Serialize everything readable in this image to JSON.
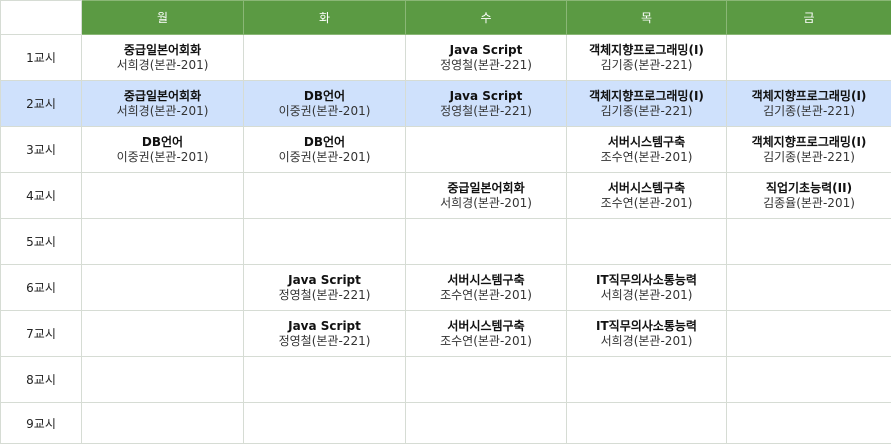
{
  "header": {
    "corner": "",
    "days": [
      "월",
      "화",
      "수",
      "목",
      "금"
    ]
  },
  "rows": [
    {
      "period": "1교시",
      "cells": [
        {
          "title": "중급일본어회화",
          "room": "서희경(본관-201)"
        },
        null,
        {
          "title": "Java Script",
          "room": "정영철(본관-221)"
        },
        {
          "title": "객체지향프로그래밍(I)",
          "room": "김기종(본관-221)"
        },
        null
      ]
    },
    {
      "period": "2교시",
      "highlight": true,
      "cells": [
        {
          "title": "중급일본어회화",
          "room": "서희경(본관-201)"
        },
        {
          "title": "DB언어",
          "room": "이중권(본관-201)"
        },
        {
          "title": "Java Script",
          "room": "정영철(본관-221)"
        },
        {
          "title": "객체지향프로그래밍(I)",
          "room": "김기종(본관-221)"
        },
        {
          "title": "객체지향프로그래밍(I)",
          "room": "김기종(본관-221)"
        }
      ]
    },
    {
      "period": "3교시",
      "cells": [
        {
          "title": "DB언어",
          "room": "이중권(본관-201)"
        },
        {
          "title": "DB언어",
          "room": "이중권(본관-201)"
        },
        null,
        {
          "title": "서버시스템구축",
          "room": "조수연(본관-201)"
        },
        {
          "title": "객체지향프로그래밍(I)",
          "room": "김기종(본관-221)"
        }
      ]
    },
    {
      "period": "4교시",
      "cells": [
        null,
        null,
        {
          "title": "중급일본어회화",
          "room": "서희경(본관-201)"
        },
        {
          "title": "서버시스템구축",
          "room": "조수연(본관-201)"
        },
        {
          "title": "직업기초능력(II)",
          "room": "김종율(본관-201)"
        }
      ]
    },
    {
      "period": "5교시",
      "cells": [
        null,
        null,
        null,
        null,
        null
      ]
    },
    {
      "period": "6교시",
      "cells": [
        null,
        {
          "title": "Java Script",
          "room": "정영철(본관-221)"
        },
        {
          "title": "서버시스템구축",
          "room": "조수연(본관-201)"
        },
        {
          "title": "IT직무의사소통능력",
          "room": "서희경(본관-201)"
        },
        null
      ]
    },
    {
      "period": "7교시",
      "cells": [
        null,
        {
          "title": "Java Script",
          "room": "정영철(본관-221)"
        },
        {
          "title": "서버시스템구축",
          "room": "조수연(본관-201)"
        },
        {
          "title": "IT직무의사소통능력",
          "room": "서희경(본관-201)"
        },
        null
      ]
    },
    {
      "period": "8교시",
      "cells": [
        null,
        null,
        null,
        null,
        null
      ]
    },
    {
      "period": "9교시",
      "cells": [
        null,
        null,
        null,
        null,
        null
      ]
    }
  ]
}
